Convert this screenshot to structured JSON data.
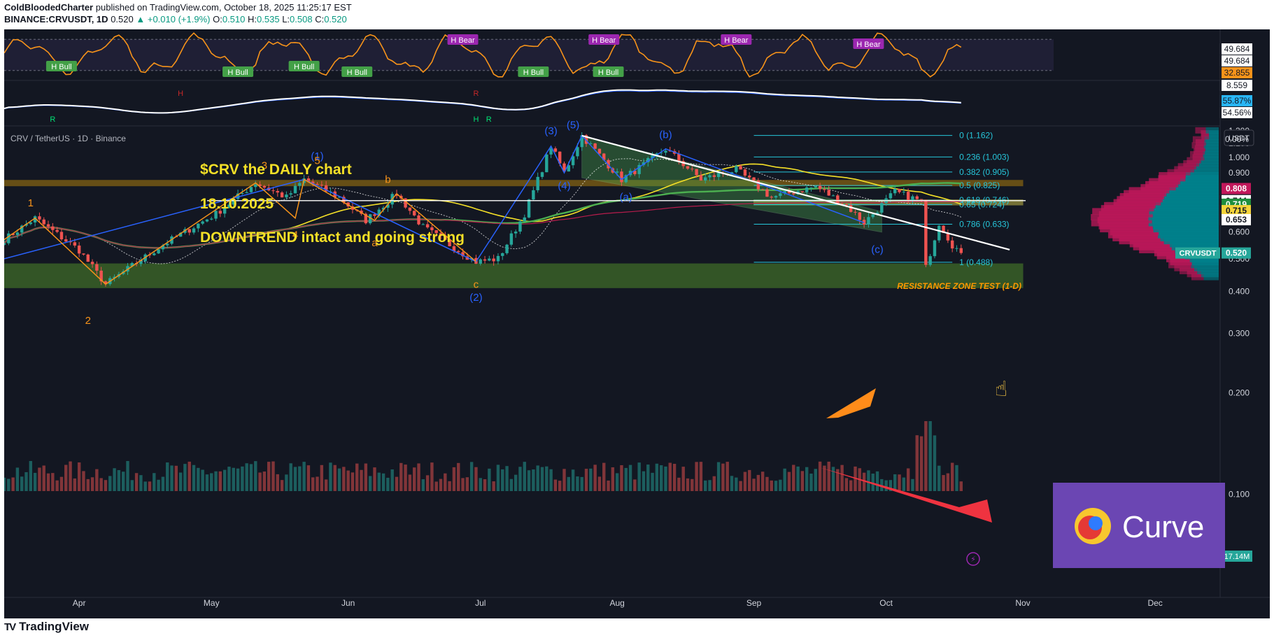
{
  "header": {
    "publisher": "ColdBloodedCharter",
    "published_text": "published on TradingView.com, October 18, 2025 11:25:17 EST",
    "symbol_line": "BINANCE:CRVUSDT, 1D",
    "last": "0.520",
    "change": "+0.010 (+1.9%)",
    "ohlc": {
      "o_label": "O:",
      "o": "0.510",
      "h_label": "H:",
      "h": "0.535",
      "l_label": "L:",
      "l": "0.508",
      "c_label": "C:",
      "c": "0.520"
    }
  },
  "brand": {
    "name": "TradingView",
    "logo_text": "TV"
  },
  "chart": {
    "legend": "CRV / TetherUS · 1D · Binance",
    "currency_badge": "USDT",
    "annotation_title": "$CRV   the DAILY chart",
    "annotation_date": "18.10.2025",
    "annotation_note": "DOWNTREND intact and going strong",
    "resistance_label": "RESISTANCE ZONE TEST (1-D)",
    "curve_logo_text": "Curve",
    "volume_badge": "17.14M",
    "last_price_badge": {
      "symbol": "CRVUSDT",
      "value": "0.520"
    },
    "price_badges": [
      {
        "value": "0.808",
        "color": "#c2185b",
        "text_color": "#ffffff"
      },
      {
        "value": "0.744",
        "color": "#ffffff",
        "text_color": "#131722"
      },
      {
        "value": "0.719",
        "color": "#1e8e3e",
        "text_color": "#ffffff"
      },
      {
        "value": "0.715",
        "color": "#f5d43b",
        "text_color": "#131722"
      },
      {
        "value": "0.653",
        "color": "#ffffff",
        "text_color": "#131722"
      }
    ],
    "indicator_badges": [
      {
        "value": "49.684",
        "color": "#ffffff",
        "text_color": "#131722"
      },
      {
        "value": "49.684",
        "color": "#ffffff",
        "text_color": "#131722"
      },
      {
        "value": "32.855",
        "color": "#f7931a",
        "text_color": "#131722"
      },
      {
        "value": "8.559",
        "color": "#ffffff",
        "text_color": "#131722"
      },
      {
        "value": "55.87%",
        "color": "#29b6f6",
        "text_color": "#131722"
      },
      {
        "value": "54.56%",
        "color": "#ffffff",
        "text_color": "#131722"
      },
      {
        "value": "0.00%",
        "color": "transparent",
        "text_color": "#d1d4dc"
      }
    ],
    "fib_levels": [
      {
        "label": "0 (1.162)",
        "price": 1.162
      },
      {
        "label": "0.236 (1.003)",
        "price": 1.003
      },
      {
        "label": "0.382 (0.905)",
        "price": 0.905
      },
      {
        "label": "0.5 (0.825)",
        "price": 0.825
      },
      {
        "label": "0.618 (0.746)",
        "price": 0.746
      },
      {
        "label": "0.65 (0.724)",
        "price": 0.724
      },
      {
        "label": "0.786 (0.633)",
        "price": 0.633
      },
      {
        "label": "1 (0.488)",
        "price": 0.488
      }
    ],
    "wave_labels": [
      {
        "text": "(5)",
        "date": "2025-07-22",
        "price": 1.22,
        "color": "#2962ff"
      },
      {
        "text": "(3)",
        "date": "2025-07-17",
        "price": 1.17,
        "color": "#2962ff"
      },
      {
        "text": "(b)",
        "date": "2025-08-12",
        "price": 1.14,
        "color": "#2962ff"
      },
      {
        "text": "(1)",
        "date": "2025-05-25",
        "price": 0.985,
        "color": "#2962ff"
      },
      {
        "text": "(4)",
        "date": "2025-07-20",
        "price": 0.805,
        "color": "#2962ff"
      },
      {
        "text": "(a)",
        "date": "2025-08-03",
        "price": 0.745,
        "color": "#2962ff"
      },
      {
        "text": "(c)",
        "date": "2025-09-29",
        "price": 0.52,
        "color": "#2962ff"
      },
      {
        "text": "(2)",
        "date": "2025-06-30",
        "price": 0.375,
        "color": "#2962ff"
      },
      {
        "text": "5",
        "date": "2025-05-25",
        "price": 0.955,
        "color": "#f7931a"
      },
      {
        "text": "3",
        "date": "2025-05-13",
        "price": 0.925,
        "color": "#f7931a"
      },
      {
        "text": "b",
        "date": "2025-06-10",
        "price": 0.84,
        "color": "#f7931a"
      },
      {
        "text": "1",
        "date": "2025-03-21",
        "price": 0.715,
        "color": "#f7931a"
      },
      {
        "text": "4",
        "date": "2025-05-20",
        "price": 0.575,
        "color": "#f7931a"
      },
      {
        "text": "a",
        "date": "2025-06-07",
        "price": 0.545,
        "color": "#f7931a"
      },
      {
        "text": "c",
        "date": "2025-06-30",
        "price": 0.41,
        "color": "#f7931a"
      },
      {
        "text": "2",
        "date": "2025-04-03",
        "price": 0.32,
        "color": "#f7931a"
      }
    ],
    "rsi_tags": [
      {
        "text": "H Bull",
        "date": "2025-03-28",
        "type": "bull"
      },
      {
        "text": "H Bull",
        "date": "2025-05-07",
        "type": "bull"
      },
      {
        "text": "H Bull",
        "date": "2025-05-22",
        "type": "bull"
      },
      {
        "text": "H Bull",
        "date": "2025-06-03",
        "type": "bull"
      },
      {
        "text": "H Bear",
        "date": "2025-06-27",
        "type": "bear"
      },
      {
        "text": "H Bull",
        "date": "2025-07-13",
        "type": "bull"
      },
      {
        "text": "H Bear",
        "date": "2025-07-29",
        "type": "bear"
      },
      {
        "text": "H Bull",
        "date": "2025-07-30",
        "type": "bull"
      },
      {
        "text": "H Bear",
        "date": "2025-08-28",
        "type": "bear"
      },
      {
        "text": "H Bear",
        "date": "2025-09-27",
        "type": "bear"
      }
    ],
    "macd_marks": [
      {
        "text": "R",
        "date": "2025-03-26",
        "color": "#00e676"
      },
      {
        "text": "H",
        "date": "2025-04-24",
        "color": "#c62828"
      },
      {
        "text": "R",
        "date": "2025-06-30",
        "color": "#c62828"
      },
      {
        "text": "H",
        "date": "2025-06-30",
        "color": "#00e676"
      },
      {
        "text": "R",
        "date": "2025-07-01",
        "color": "#00e676"
      }
    ]
  },
  "chart_data": {
    "type": "candlestick",
    "title": "$CRV   the DAILY chart",
    "symbol": "CRV / TetherUS · 1D · Binance",
    "x_axis": {
      "ticks": [
        "Apr",
        "May",
        "Jun",
        "Jul",
        "Aug",
        "Sep",
        "Oct",
        "Nov",
        "Dec"
      ],
      "range": [
        "2025-03-15",
        "2025-12-27"
      ]
    },
    "y_axis": {
      "scale": "log",
      "range": [
        0.095,
        1.24
      ],
      "ticks": [
        "1.200",
        "1.100",
        "1.000",
        "0.900",
        "0.800",
        "0.700",
        "0.600",
        "0.500",
        "0.400",
        "0.300",
        "0.200",
        "0.100"
      ]
    },
    "swing_points": [
      {
        "date": "2025-03-15",
        "price": 0.57
      },
      {
        "date": "2025-03-22",
        "price": 0.66
      },
      {
        "date": "2025-04-01",
        "price": 0.53
      },
      {
        "date": "2025-04-07",
        "price": 0.42
      },
      {
        "date": "2025-04-20",
        "price": 0.55
      },
      {
        "date": "2025-05-02",
        "price": 0.68
      },
      {
        "date": "2025-05-11",
        "price": 0.84
      },
      {
        "date": "2025-05-18",
        "price": 0.76
      },
      {
        "date": "2025-05-22",
        "price": 0.86
      },
      {
        "date": "2025-05-30",
        "price": 0.76
      },
      {
        "date": "2025-06-05",
        "price": 0.65
      },
      {
        "date": "2025-06-12",
        "price": 0.78
      },
      {
        "date": "2025-06-18",
        "price": 0.62
      },
      {
        "date": "2025-06-25",
        "price": 0.54
      },
      {
        "date": "2025-06-30",
        "price": 0.49
      },
      {
        "date": "2025-07-05",
        "price": 0.5
      },
      {
        "date": "2025-07-11",
        "price": 0.68
      },
      {
        "date": "2025-07-17",
        "price": 1.08
      },
      {
        "date": "2025-07-20",
        "price": 0.9
      },
      {
        "date": "2025-07-24",
        "price": 1.16
      },
      {
        "date": "2025-08-02",
        "price": 0.86
      },
      {
        "date": "2025-08-07",
        "price": 0.95
      },
      {
        "date": "2025-08-12",
        "price": 1.06
      },
      {
        "date": "2025-08-20",
        "price": 0.86
      },
      {
        "date": "2025-08-28",
        "price": 0.92
      },
      {
        "date": "2025-09-05",
        "price": 0.76
      },
      {
        "date": "2025-09-15",
        "price": 0.82
      },
      {
        "date": "2025-09-22",
        "price": 0.72
      },
      {
        "date": "2025-09-26",
        "price": 0.64
      },
      {
        "date": "2025-10-03",
        "price": 0.79
      },
      {
        "date": "2025-10-09",
        "price": 0.74
      },
      {
        "date": "2025-10-10",
        "price": 0.47
      },
      {
        "date": "2025-10-13",
        "price": 0.64
      },
      {
        "date": "2025-10-16",
        "price": 0.55
      },
      {
        "date": "2025-10-18",
        "price": 0.52
      }
    ],
    "last_candle": {
      "open": 0.51,
      "high": 0.535,
      "low": 0.508,
      "close": 0.52
    },
    "zones": [
      {
        "name": "resistance",
        "from": 0.823,
        "to": 0.855,
        "color": "#b8860b"
      },
      {
        "name": "support",
        "from": 0.41,
        "to": 0.483,
        "color": "#5aa02c"
      },
      {
        "name": "retest",
        "from": 0.722,
        "to": 0.748,
        "color": "#d4c84a"
      }
    ],
    "horizontal_line": 0.744,
    "downtrend_line": [
      {
        "date": "2025-07-24",
        "price": 1.16
      },
      {
        "date": "2025-10-29",
        "price": 0.532
      }
    ]
  }
}
